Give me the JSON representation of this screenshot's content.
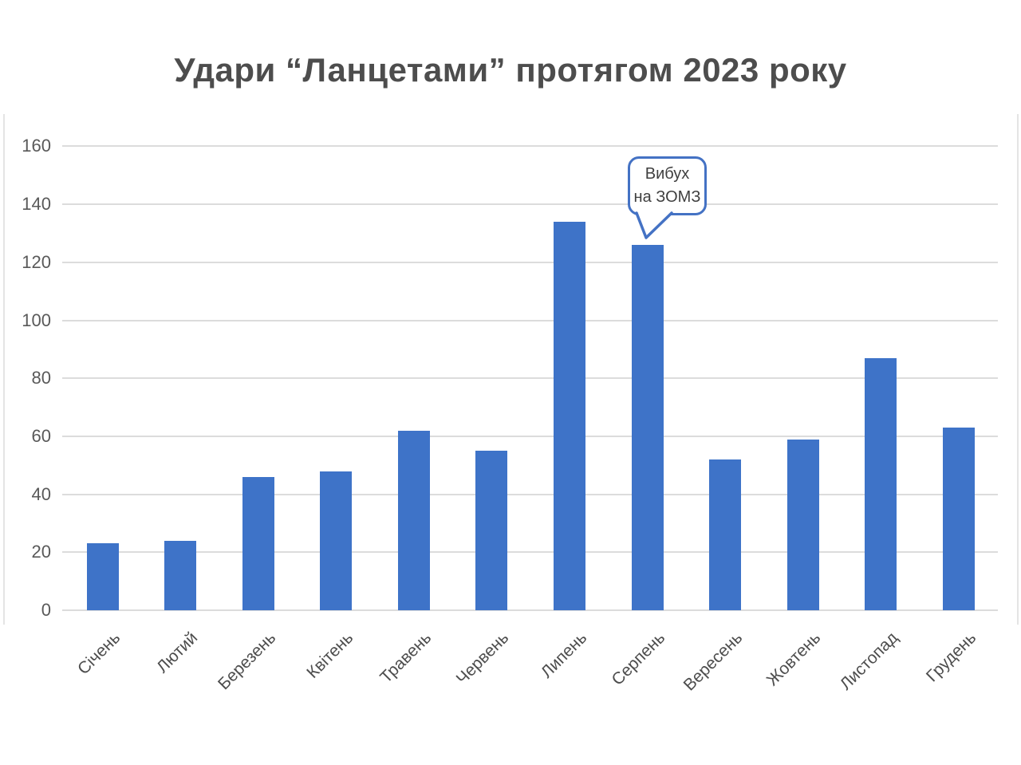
{
  "chart_data": {
    "type": "bar",
    "title": "Удари “Ланцетами” протягом 2023 року",
    "categories": [
      "Січень",
      "Лютий",
      "Березень",
      "Квітень",
      "Травень",
      "Червень",
      "Липень",
      "Серпень",
      "Вересень",
      "Жовтень",
      "Листопад",
      "Грудень"
    ],
    "values": [
      23,
      24,
      46,
      48,
      62,
      55,
      134,
      126,
      52,
      59,
      87,
      63
    ],
    "xlabel": "",
    "ylabel": "",
    "ylim": [
      0,
      160
    ],
    "yticks": [
      0,
      20,
      40,
      60,
      80,
      100,
      120,
      140,
      160
    ],
    "grid": "horizontal",
    "legend": "none",
    "bar_color": "#3e73c8",
    "annotation": {
      "text": "Вибух на ЗОМЗ",
      "line1": "Вибух",
      "line2": "на ЗОМЗ",
      "target_category": "Серпень",
      "border_color": "#4472c4"
    }
  },
  "colors": {
    "title": "#4d4d4d",
    "axis_label": "#595959",
    "gridline": "#dcdcdc",
    "background": "#ffffff"
  }
}
